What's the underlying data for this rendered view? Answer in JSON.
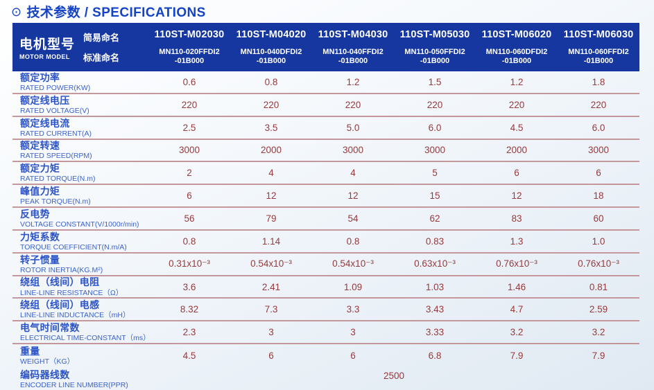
{
  "title": {
    "icon": "⊙",
    "text": "技术参数 / SPECIFICATIONS"
  },
  "colors": {
    "header_bg": "#16379f",
    "title_blue": "#1443c5",
    "label_blue": "#2d54c6",
    "value_maroon": "#96393b",
    "divider_rose": "#c3979c"
  },
  "header": {
    "motor_model_zh": "电机型号",
    "motor_model_en": "MOTOR MODEL",
    "simple_name_label": "简易命名",
    "standard_name_label": "标准命名",
    "models": [
      {
        "simple": "110ST-M02030",
        "standard": "MN110-020FFDI2\n-01B000"
      },
      {
        "simple": "110ST-M04020",
        "standard": "MN110-040DFDI2\n-01B000"
      },
      {
        "simple": "110ST-M04030",
        "standard": "MN110-040FFDI2\n-01B000"
      },
      {
        "simple": "110ST-M05030",
        "standard": "MN110-050FFDI2\n-01B000"
      },
      {
        "simple": "110ST-M06020",
        "standard": "MN110-060DFDI2\n-01B000"
      },
      {
        "simple": "110ST-M06030",
        "standard": "MN110-060FFDI2\n-01B000"
      }
    ]
  },
  "rows": [
    {
      "zh": "额定功率",
      "en": "RATED POWER(KW)",
      "values": [
        "0.6",
        "0.8",
        "1.2",
        "1.5",
        "1.2",
        "1.8"
      ]
    },
    {
      "zh": "额定线电压",
      "en": "RATED VOLTAGE(V)",
      "values": [
        "220",
        "220",
        "220",
        "220",
        "220",
        "220"
      ]
    },
    {
      "zh": "额定线电流",
      "en": "RATED CURRENT(A)",
      "values": [
        "2.5",
        "3.5",
        "5.0",
        "6.0",
        "4.5",
        "6.0"
      ]
    },
    {
      "zh": "额定转速",
      "en": "RATED SPEED(RPM)",
      "values": [
        "3000",
        "2000",
        "3000",
        "3000",
        "2000",
        "3000"
      ]
    },
    {
      "zh": "额定力矩",
      "en": "RATED TORQUE(N.m)",
      "values": [
        "2",
        "4",
        "4",
        "5",
        "6",
        "6"
      ]
    },
    {
      "zh": "峰值力矩",
      "en": "PEAK TORQUE(N.m)",
      "values": [
        "6",
        "12",
        "12",
        "15",
        "12",
        "18"
      ]
    },
    {
      "zh": "反电势",
      "en": "VOLTAGE CONSTANT(V/1000r/min)",
      "values": [
        "56",
        "79",
        "54",
        "62",
        "83",
        "60"
      ]
    },
    {
      "zh": "力矩系数",
      "en": "TORQUE COEFFICIENT(N.m/A)",
      "values": [
        "0.8",
        "1.14",
        "0.8",
        "0.83",
        "1.3",
        "1.0"
      ]
    },
    {
      "zh": "转子惯量",
      "en": "ROTOR INERTIA(KG.M²)",
      "values": [
        "0.31x10⁻³",
        "0.54x10⁻³",
        "0.54x10⁻³",
        "0.63x10⁻³",
        "0.76x10⁻³",
        "0.76x10⁻³"
      ]
    },
    {
      "zh": "绕组（线间）电阻",
      "en": "LINE-LINE RESISTANCE（Ω）",
      "values": [
        "3.6",
        "2.41",
        "1.09",
        "1.03",
        "1.46",
        "0.81"
      ]
    },
    {
      "zh": "绕组（线间）电感",
      "en": "LINE-LINE INDUCTANCE（mH）",
      "values": [
        "8.32",
        "7.3",
        "3.3",
        "3.43",
        "4.7",
        "2.59"
      ]
    },
    {
      "zh": "电气时间常数",
      "en": "ELECTRICAL TIME-CONSTANT（ms）",
      "values": [
        "2.3",
        "3",
        "3",
        "3.33",
        "3.2",
        "3.2"
      ]
    },
    {
      "zh": "重量",
      "en": "WEIGHT（KG）",
      "values": [
        "4.5",
        "6",
        "6",
        "6.8",
        "7.9",
        "7.9"
      ]
    }
  ],
  "encoder_row": {
    "zh": "编码器线数",
    "en": "ENCODER LINE NUMBER(PPR)",
    "value": "2500"
  }
}
